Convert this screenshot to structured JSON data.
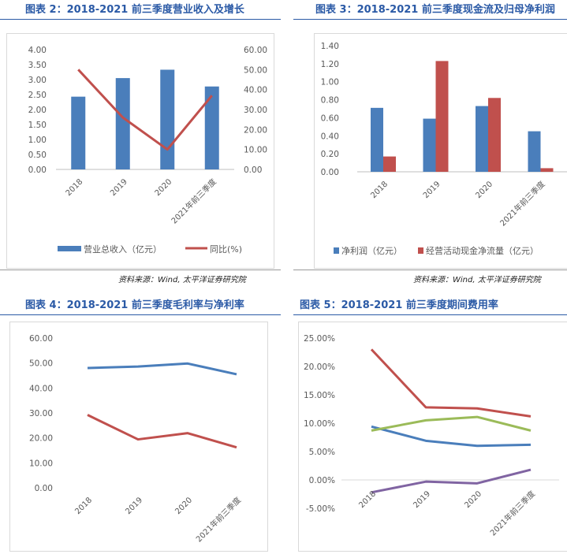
{
  "colors": {
    "title": "#2b5aa6",
    "blue": "#4a7ebb",
    "red": "#c0504d",
    "green": "#9bbb59",
    "purple": "#8064a2",
    "text": "#595959"
  },
  "panel1": {
    "title": "图表 2：2018-2021 前三季度营业收入及增长",
    "source": "资料来源：Wind, 太平洋证券研究院"
  },
  "panel2": {
    "title": "图表 3：2018-2021 前三季度现金流及归母净利润",
    "source": "资料来源：Wind, 太平洋证券研究院"
  },
  "panel3": {
    "title": "图表 4：2018-2021 前三季度毛利率与净利率"
  },
  "panel4": {
    "title": "图表 5：2018-2021 前三季度期间费用率"
  },
  "chart_data": [
    {
      "type": "bar",
      "categories": [
        "2018",
        "2019",
        "2020",
        "2021年前三季度"
      ],
      "series": [
        {
          "name": "营业总收入（亿元）",
          "type": "bar",
          "axis": "left",
          "values": [
            2.43,
            3.05,
            3.33,
            2.77
          ]
        },
        {
          "name": "同比(%)",
          "type": "line",
          "axis": "right",
          "values": [
            50.0,
            26.0,
            10.0,
            37.0
          ]
        }
      ],
      "left_ticks": [
        "0.00",
        "0.50",
        "1.00",
        "1.50",
        "2.00",
        "2.50",
        "3.00",
        "3.50",
        "4.00"
      ],
      "right_ticks": [
        "0.00",
        "10.00",
        "20.00",
        "30.00",
        "40.00",
        "50.00",
        "60.00"
      ],
      "ylim_left": [
        0,
        4
      ],
      "ylim_right": [
        0,
        60
      ],
      "legend": "bottom"
    },
    {
      "type": "bar",
      "categories": [
        "2018",
        "2019",
        "2020",
        "2021年前三季度"
      ],
      "series": [
        {
          "name": "净利润（亿元）",
          "values": [
            0.71,
            0.59,
            0.73,
            0.45
          ]
        },
        {
          "name": "经营活动现金净流量（亿元）",
          "values": [
            0.17,
            1.23,
            0.82,
            0.04
          ]
        }
      ],
      "y_ticks": [
        "0.00",
        "0.20",
        "0.40",
        "0.60",
        "0.80",
        "1.00",
        "1.20",
        "1.40"
      ],
      "ylim": [
        0,
        1.4
      ],
      "legend": "bottom"
    },
    {
      "type": "line",
      "categories": [
        "2018",
        "2019",
        "2020",
        "2021年前三季度"
      ],
      "series": [
        {
          "values": [
            48.0,
            48.6,
            49.8,
            45.5
          ]
        },
        {
          "values": [
            29.2,
            19.4,
            21.9,
            16.2
          ]
        }
      ],
      "y_ticks": [
        "0.00",
        "10.00",
        "20.00",
        "30.00",
        "40.00",
        "50.00",
        "60.00"
      ],
      "ylim": [
        0,
        60
      ]
    },
    {
      "type": "line",
      "categories": [
        "2018",
        "2019",
        "2020",
        "2021年前三季度"
      ],
      "series": [
        {
          "values": [
            23.0,
            12.8,
            12.6,
            11.2
          ]
        },
        {
          "values": [
            9.4,
            6.9,
            6.0,
            6.2
          ]
        },
        {
          "values": [
            8.7,
            10.5,
            11.1,
            8.7
          ]
        },
        {
          "values": [
            -2.2,
            -0.3,
            -0.6,
            1.8
          ]
        }
      ],
      "y_ticks": [
        "-5.00%",
        "0.00%",
        "5.00%",
        "10.00%",
        "15.00%",
        "20.00%",
        "25.00%"
      ],
      "ylim": [
        -5,
        25
      ]
    }
  ]
}
